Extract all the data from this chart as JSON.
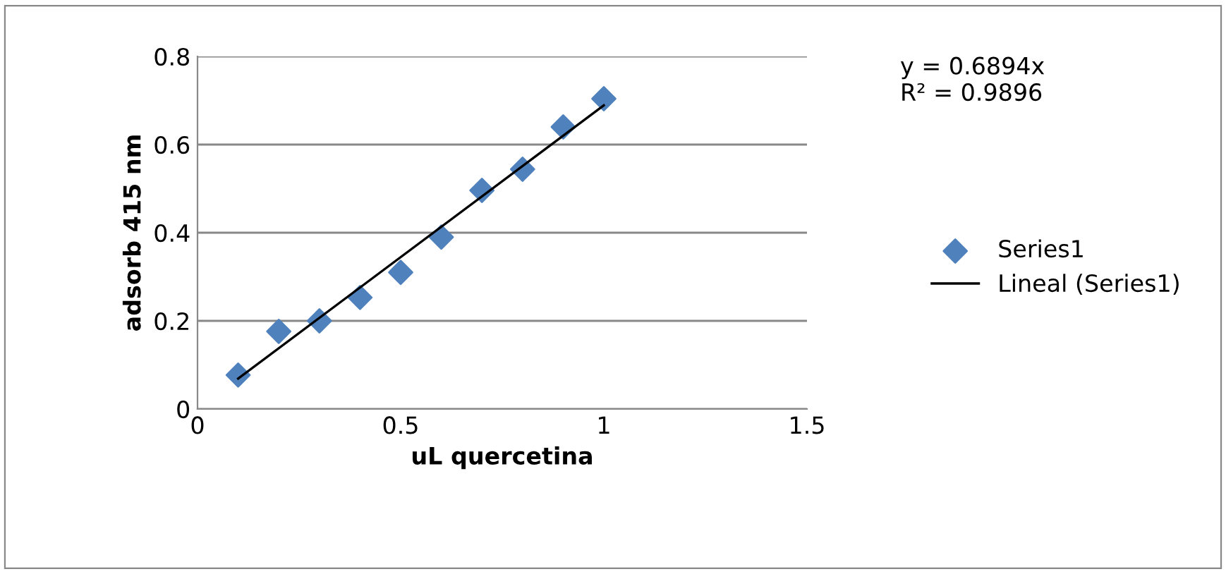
{
  "chart_data": {
    "type": "scatter",
    "xlabel": "uL quercetina",
    "ylabel": "adsorb 415 nm",
    "x": [
      0.1,
      0.2,
      0.3,
      0.4,
      0.5,
      0.6,
      0.7,
      0.8,
      0.9,
      1.0
    ],
    "series": [
      {
        "name": "Series1",
        "color": "#4f81bd",
        "marker": "diamond",
        "values": [
          0.077,
          0.176,
          0.2,
          0.253,
          0.31,
          0.39,
          0.496,
          0.544,
          0.64,
          0.704
        ]
      },
      {
        "name": "Lineal (Series1)",
        "type": "line",
        "color": "#000000",
        "marker": "none",
        "line_style": "solid",
        "x": [
          0.1,
          1.0
        ],
        "values": [
          0.069,
          0.689
        ]
      }
    ],
    "annotations": [
      "y = 0.6894x\nR² = 0.9896"
    ],
    "xlim": [
      0,
      1.5
    ],
    "xticks": [
      0,
      0.5,
      1,
      1.5
    ],
    "ylim": [
      0,
      0.8
    ],
    "yticks": [
      0,
      0.2,
      0.4,
      0.6,
      0.8
    ],
    "grid": "y",
    "legend": "right"
  }
}
